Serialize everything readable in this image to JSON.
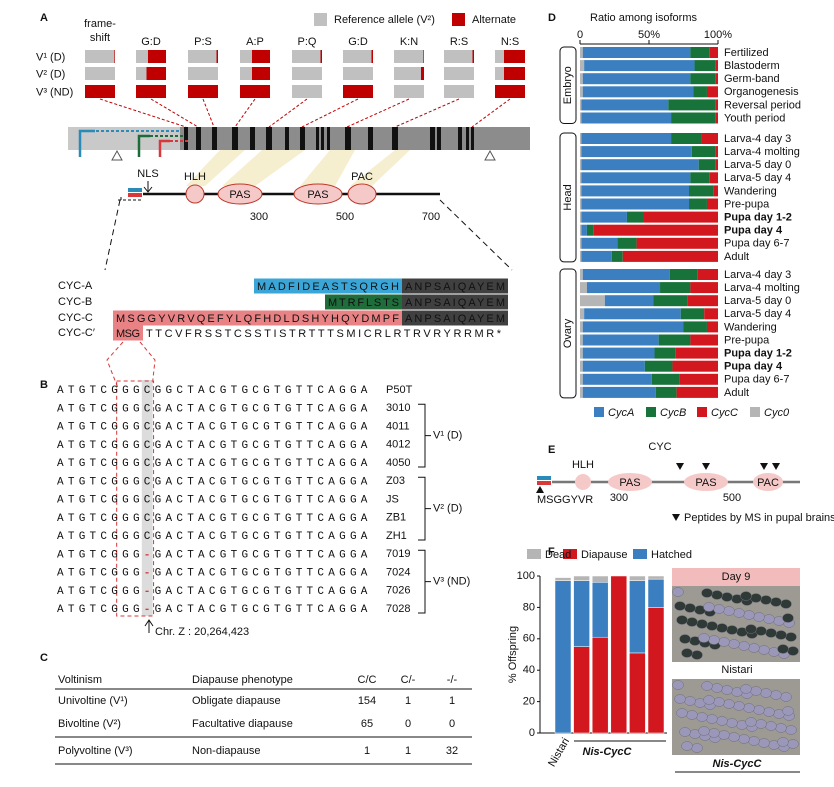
{
  "panel_labels": [
    "A",
    "B",
    "C",
    "D",
    "E",
    "F"
  ],
  "panel_a": {
    "legend": [
      {
        "label": "Reference allele (V²)",
        "color": "#c0c0c0"
      },
      {
        "label": "Alternate",
        "color": "#c00000"
      }
    ],
    "variants": [
      "frame-shift",
      "G:D",
      "P:S",
      "A:P",
      "P:Q",
      "G:D",
      "K:N",
      "R:S",
      "N:S"
    ],
    "strains": [
      "V¹ (D)",
      "V² (D)",
      "V³ (ND)"
    ],
    "alternate_fraction": [
      [
        0.02,
        0,
        1
      ],
      [
        0.6,
        0.65,
        1
      ],
      [
        0.05,
        0,
        1
      ],
      [
        0.6,
        0.6,
        1
      ],
      [
        0.05,
        0,
        0
      ],
      [
        0.05,
        0,
        1
      ],
      [
        0.02,
        0.1,
        0
      ],
      [
        0.05,
        0,
        0
      ],
      [
        0.7,
        0.7,
        1
      ]
    ],
    "protein": {
      "nls": "NLS",
      "domains": [
        "HLH",
        "PAS",
        "PAS",
        "PAC"
      ],
      "ticks": [
        300,
        500,
        700
      ]
    },
    "isoforms": [
      {
        "name": "CYC-A",
        "color": "#2a8ab8",
        "box": "#3aa6d8",
        "unique": "MADFIDEASTSQRGH",
        "common": "ANPSAIQAYEM"
      },
      {
        "name": "CYC-B",
        "color": "#1e6b3a",
        "box": "#1f6d3b",
        "unique": "MTRFLSTS",
        "common": "ANPSAIQAYEM"
      },
      {
        "name": "CYC-C",
        "color": "#d9383a",
        "box": "#e98284",
        "unique": "MSGGYVRVQEFYLQFHDLDSHYHQYDMPF",
        "common": "ANPSAIQAYEM"
      },
      {
        "name": "CYC-C′",
        "color": "#d9383a",
        "box": "#e98284",
        "unique": "MSG",
        "tail": "TTCVFRSSTCSSTISTRTTTSMICRLRTRVRYRRMR*"
      }
    ]
  },
  "panel_b": {
    "sequences": [
      {
        "id": "P50T",
        "seq": "ATGTCGGGCGGCTACGTGCGTGTTCAGGA"
      },
      {
        "id": "3010",
        "seq": "ATGTCGGGCGACTACGTGCGTGTTCAGGA"
      },
      {
        "id": "4011",
        "seq": "ATGTCGGGCGACTACGTGCGTGTTCAGGA"
      },
      {
        "id": "4012",
        "seq": "ATGTCGGGCGACTACGTGCGTGTTCAGGA"
      },
      {
        "id": "4050",
        "seq": "ATGTCGGGCGACTACGTGCGTGTTCAGGA"
      },
      {
        "id": "Z03",
        "seq": "ATGTCGGGCGACTACGTGCGTGTTCAGGA"
      },
      {
        "id": "JS",
        "seq": "ATGTCGGGCGACTACGTGCGTGTTCAGGA"
      },
      {
        "id": "ZB1",
        "seq": "ATGTCGGGCGACTACGTGCGTGTTCAGGA"
      },
      {
        "id": "ZH1",
        "seq": "ATGTCGGGCGACTACGTGCGTGTTCAGGA"
      },
      {
        "id": "7019",
        "seq": "ATGTCGGG-GACTACGTGCGTGTTCAGGA"
      },
      {
        "id": "7024",
        "seq": "ATGTCGGG-GACTACGTGCGTGTTCAGGA"
      },
      {
        "id": "7026",
        "seq": "ATGTCGGG-GACTACGTGCGTGTTCAGGA"
      },
      {
        "id": "7028",
        "seq": "ATGTCGGG-GACTACGTGCGTGTTCAGGA"
      }
    ],
    "groups": [
      "V¹ (D)",
      "V² (D)",
      "V³ (ND)"
    ],
    "position": "Chr. Z : 20,264,423"
  },
  "panel_c": {
    "header": [
      "Voltinism",
      "Diapause phenotype",
      "C/C",
      "C/-",
      "-/-"
    ],
    "rows": [
      [
        "Univoltine (V¹)",
        "Obligate diapause",
        "154",
        "1",
        "1"
      ],
      [
        "Bivoltine (V²)",
        "Facultative diapause",
        "65",
        "0",
        "0"
      ],
      [
        "Polyvoltine (V³)",
        "Non-diapause",
        "1",
        "1",
        "32"
      ]
    ]
  },
  "panel_e": {
    "title": "CYC",
    "domains": [
      "HLH",
      "PAS",
      "PAS",
      "PAC"
    ],
    "ticks": [
      300,
      500
    ],
    "extension": "MSGGYVR",
    "note": "Peptides by MS in pupal brains"
  },
  "chart_data": [
    {
      "type": "stacked_barh",
      "title": "Ratio among isoforms",
      "xlim": [
        0,
        100
      ],
      "xticks": [
        0,
        {
          "value": 50,
          "label": "50%"
        },
        {
          "value": 100,
          "label": "100%"
        }
      ],
      "groups": [
        {
          "name": "Embryo",
          "categories": [
            "Fertilized",
            "Blastoderm",
            "Germ-band",
            "Organogenesis",
            "Reversal period",
            "Youth period"
          ],
          "bold": [
            false,
            false,
            false,
            false,
            false,
            false
          ]
        },
        {
          "name": "Head",
          "categories": [
            "Larva-4 day 3",
            "Larva-4 molting",
            "Larva-5 day 0",
            "Larva-5 day 4",
            "Wandering",
            "Pre-pupa",
            "Pupa day 1-2",
            "Pupa day 4",
            "Pupa day 6-7",
            "Adult"
          ],
          "bold": [
            false,
            false,
            false,
            false,
            false,
            false,
            true,
            true,
            false,
            false
          ]
        },
        {
          "name": "Ovary",
          "categories": [
            "Larva-4 day 3",
            "Larva-4 molting",
            "Larva-5 day 0",
            "Larva-5 day 4",
            "Wandering",
            "Pre-pupa",
            "Pupa day 1-2",
            "Pupa day 4",
            "Pupa day 6-7",
            "Adult"
          ],
          "bold": [
            false,
            false,
            false,
            false,
            false,
            false,
            true,
            true,
            false,
            false
          ]
        }
      ],
      "series": [
        {
          "name": "CycA",
          "color": "#3b7fc0",
          "values": [
            78,
            80,
            78,
            80,
            63,
            65,
            65,
            80,
            85,
            79,
            78,
            78,
            33,
            4,
            26,
            22,
            63,
            53,
            35,
            70,
            73,
            55,
            52,
            45,
            50,
            53
          ]
        },
        {
          "name": "CycB",
          "color": "#17733a",
          "values": [
            14,
            15,
            18,
            10,
            34,
            32,
            22,
            17,
            12,
            14,
            18,
            13,
            12,
            5,
            14,
            8,
            20,
            22,
            25,
            17,
            17,
            23,
            15,
            20,
            20,
            15
          ]
        },
        {
          "name": "CycC",
          "color": "#d2181e",
          "values": [
            6,
            2,
            2,
            8,
            2,
            2,
            12,
            2,
            2,
            6,
            3,
            8,
            54,
            90,
            59,
            69,
            15,
            20,
            22,
            10,
            8,
            20,
            31,
            33,
            28,
            30
          ]
        },
        {
          "name": "Cyc0",
          "color": "#b5b5b5",
          "values": [
            2,
            3,
            2,
            2,
            1,
            1,
            1,
            1,
            1,
            1,
            1,
            1,
            1,
            1,
            1,
            1,
            2,
            5,
            18,
            3,
            2,
            2,
            2,
            2,
            2,
            2
          ]
        }
      ]
    },
    {
      "type": "stacked_bar",
      "ylabel": "% Offspring",
      "ylim": [
        0,
        100
      ],
      "yticks": [
        0,
        20,
        40,
        60,
        80,
        100
      ],
      "categories": [
        "Nistari",
        null,
        null,
        null,
        null,
        null
      ],
      "group_label": "Nis-CycC",
      "series": [
        {
          "name": "Diapause",
          "color": "#d2181e",
          "values": [
            0,
            55,
            61,
            100,
            51,
            80
          ]
        },
        {
          "name": "Hatched",
          "color": "#3b7fc0",
          "values": [
            97,
            42,
            35,
            0,
            46,
            18
          ]
        },
        {
          "name": "Dead",
          "color": "#b5b5b5",
          "values": [
            2,
            3,
            4,
            0,
            3,
            2
          ]
        }
      ],
      "photos": {
        "header": "Day 9",
        "top": "Nistari",
        "bottom": "Nis-CycC"
      }
    }
  ]
}
